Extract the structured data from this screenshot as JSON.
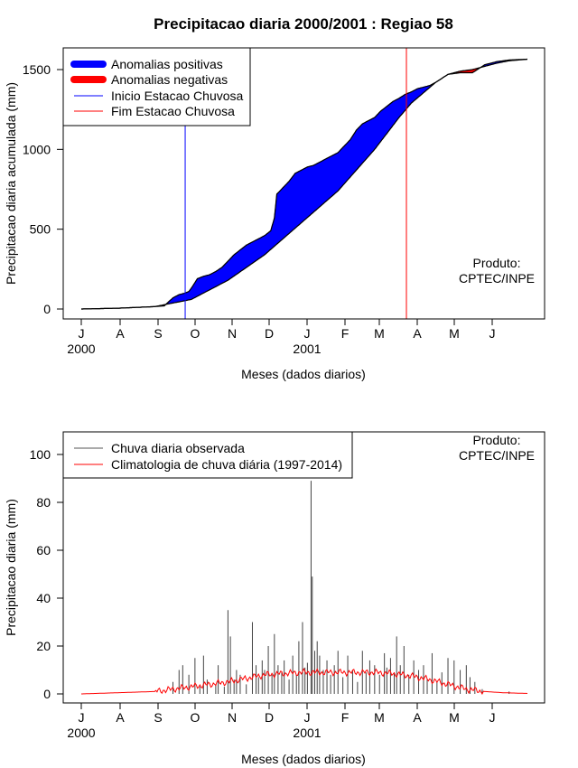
{
  "chart_data": [
    {
      "type": "area",
      "title": "Precipitacao diaria 2000/2001 : Regiao 58",
      "xlabel": "Meses (dados diarios)",
      "ylabel": "Precipitacao diaria acumulada (mm)",
      "ylim": [
        0,
        1600
      ],
      "yticks": [
        0,
        500,
        1000,
        1500
      ],
      "month_ticks": [
        "J",
        "A",
        "S",
        "O",
        "N",
        "D",
        "J",
        "F",
        "M",
        "A",
        "M",
        "J"
      ],
      "year_labels": [
        "2000",
        "2001"
      ],
      "note": [
        "Produto:",
        "CPTEC/INPE"
      ],
      "legend": {
        "placement": "top-left",
        "entries": [
          {
            "name": "Anomalias positivas",
            "color": "#0000ff",
            "style": "thick"
          },
          {
            "name": "Anomalias negativas",
            "color": "#ff0000",
            "style": "thick"
          },
          {
            "name": "Inicio Estacao Chuvosa",
            "color": "#0000ff",
            "style": "thin"
          },
          {
            "name": "Fim Estacao Chuvosa",
            "color": "#ff0000",
            "style": "thin"
          }
        ]
      },
      "vlines": [
        {
          "name": "Inicio Estacao Chuvosa",
          "day": 85,
          "color": "#0000ff"
        },
        {
          "name": "Fim Estacao Chuvosa",
          "day": 266,
          "color": "#ff0000"
        }
      ],
      "observed_day": [
        0,
        30,
        45,
        60,
        68,
        70,
        75,
        80,
        85,
        88,
        90,
        95,
        100,
        105,
        110,
        115,
        120,
        125,
        130,
        135,
        140,
        145,
        150,
        155,
        158,
        160,
        170,
        175,
        180,
        185,
        190,
        195,
        200,
        205,
        210,
        215,
        220,
        225,
        230,
        240,
        245,
        250,
        255,
        260,
        265,
        270,
        275,
        280,
        285,
        290,
        300,
        310,
        320,
        330,
        340,
        350,
        365
      ],
      "observed_mm": [
        0,
        5,
        10,
        15,
        20,
        35,
        70,
        90,
        100,
        110,
        130,
        190,
        205,
        215,
        235,
        260,
        300,
        340,
        370,
        400,
        420,
        440,
        460,
        490,
        570,
        720,
        800,
        850,
        870,
        890,
        900,
        920,
        940,
        960,
        980,
        1020,
        1060,
        1120,
        1160,
        1200,
        1240,
        1270,
        1300,
        1320,
        1345,
        1360,
        1380,
        1390,
        1400,
        1420,
        1470,
        1480,
        1480,
        1530,
        1550,
        1560,
        1565
      ],
      "climatology_day": [
        0,
        30,
        60,
        90,
        120,
        150,
        180,
        210,
        240,
        260,
        270,
        290,
        300,
        310,
        320,
        330,
        340,
        350,
        365
      ],
      "climatology_mm": [
        0,
        5,
        15,
        60,
        180,
        340,
        540,
        740,
        1000,
        1200,
        1290,
        1420,
        1470,
        1490,
        1500,
        1520,
        1540,
        1555,
        1565
      ]
    },
    {
      "type": "bar",
      "xlabel": "Meses (dados diarios)",
      "ylabel": "Precipitacao diaria (mm)",
      "ylim": [
        0,
        110
      ],
      "yticks": [
        0,
        20,
        40,
        60,
        80,
        100
      ],
      "month_ticks": [
        "J",
        "A",
        "S",
        "O",
        "N",
        "D",
        "J",
        "F",
        "M",
        "A",
        "M",
        "J"
      ],
      "year_labels": [
        "2000",
        "2001"
      ],
      "note": [
        "Produto:",
        "CPTEC/INPE"
      ],
      "legend": {
        "placement": "top-left",
        "entries": [
          {
            "name": "Chuva diaria observada",
            "color": "#555555"
          },
          {
            "name": "Climatologia de chuva diária (1997-2014)",
            "color": "#ff0000"
          }
        ]
      },
      "rain_spikes": [
        {
          "day": 75,
          "mm": 5
        },
        {
          "day": 80,
          "mm": 10
        },
        {
          "day": 83,
          "mm": 12
        },
        {
          "day": 88,
          "mm": 8
        },
        {
          "day": 93,
          "mm": 15
        },
        {
          "day": 97,
          "mm": 3
        },
        {
          "day": 100,
          "mm": 16
        },
        {
          "day": 103,
          "mm": 6
        },
        {
          "day": 110,
          "mm": 4
        },
        {
          "day": 112,
          "mm": 12
        },
        {
          "day": 117,
          "mm": 3
        },
        {
          "day": 120,
          "mm": 35
        },
        {
          "day": 122,
          "mm": 24
        },
        {
          "day": 125,
          "mm": 6
        },
        {
          "day": 127,
          "mm": 10
        },
        {
          "day": 130,
          "mm": 8
        },
        {
          "day": 135,
          "mm": 4
        },
        {
          "day": 140,
          "mm": 30
        },
        {
          "day": 143,
          "mm": 12
        },
        {
          "day": 145,
          "mm": 7
        },
        {
          "day": 148,
          "mm": 14
        },
        {
          "day": 150,
          "mm": 10
        },
        {
          "day": 153,
          "mm": 20
        },
        {
          "day": 156,
          "mm": 8
        },
        {
          "day": 158,
          "mm": 25
        },
        {
          "day": 161,
          "mm": 12
        },
        {
          "day": 164,
          "mm": 9
        },
        {
          "day": 166,
          "mm": 14
        },
        {
          "day": 170,
          "mm": 6
        },
        {
          "day": 173,
          "mm": 16
        },
        {
          "day": 176,
          "mm": 8
        },
        {
          "day": 178,
          "mm": 22
        },
        {
          "day": 181,
          "mm": 30
        },
        {
          "day": 183,
          "mm": 11
        },
        {
          "day": 185,
          "mm": 13
        },
        {
          "day": 188,
          "mm": 89
        },
        {
          "day": 189,
          "mm": 49
        },
        {
          "day": 191,
          "mm": 18
        },
        {
          "day": 193,
          "mm": 22
        },
        {
          "day": 195,
          "mm": 16
        },
        {
          "day": 198,
          "mm": 10
        },
        {
          "day": 201,
          "mm": 14
        },
        {
          "day": 204,
          "mm": 8
        },
        {
          "day": 207,
          "mm": 12
        },
        {
          "day": 210,
          "mm": 18
        },
        {
          "day": 214,
          "mm": 7
        },
        {
          "day": 218,
          "mm": 16
        },
        {
          "day": 222,
          "mm": 10
        },
        {
          "day": 226,
          "mm": 5
        },
        {
          "day": 230,
          "mm": 18
        },
        {
          "day": 233,
          "mm": 9
        },
        {
          "day": 236,
          "mm": 14
        },
        {
          "day": 240,
          "mm": 12
        },
        {
          "day": 244,
          "mm": 8
        },
        {
          "day": 248,
          "mm": 17
        },
        {
          "day": 250,
          "mm": 11
        },
        {
          "day": 253,
          "mm": 15
        },
        {
          "day": 256,
          "mm": 9
        },
        {
          "day": 258,
          "mm": 24
        },
        {
          "day": 261,
          "mm": 12
        },
        {
          "day": 264,
          "mm": 20
        },
        {
          "day": 268,
          "mm": 8
        },
        {
          "day": 272,
          "mm": 14
        },
        {
          "day": 276,
          "mm": 10
        },
        {
          "day": 280,
          "mm": 12
        },
        {
          "day": 283,
          "mm": 6
        },
        {
          "day": 287,
          "mm": 17
        },
        {
          "day": 291,
          "mm": 5
        },
        {
          "day": 295,
          "mm": 9
        },
        {
          "day": 300,
          "mm": 15
        },
        {
          "day": 305,
          "mm": 14
        },
        {
          "day": 310,
          "mm": 10
        },
        {
          "day": 315,
          "mm": 12
        },
        {
          "day": 318,
          "mm": 7
        },
        {
          "day": 322,
          "mm": 5
        },
        {
          "day": 328,
          "mm": 2
        },
        {
          "day": 350,
          "mm": 1
        }
      ],
      "climatology_day": [
        0,
        30,
        60,
        75,
        90,
        105,
        120,
        135,
        150,
        165,
        180,
        195,
        210,
        225,
        240,
        255,
        270,
        285,
        300,
        315,
        330,
        345,
        365
      ],
      "climatology_mm": [
        0,
        0.5,
        1,
        2,
        3,
        4,
        5,
        6.5,
        8,
        8.5,
        9,
        9,
        9,
        9,
        9,
        8.5,
        7.5,
        6,
        4,
        2,
        1,
        0.5,
        0.2
      ]
    }
  ]
}
